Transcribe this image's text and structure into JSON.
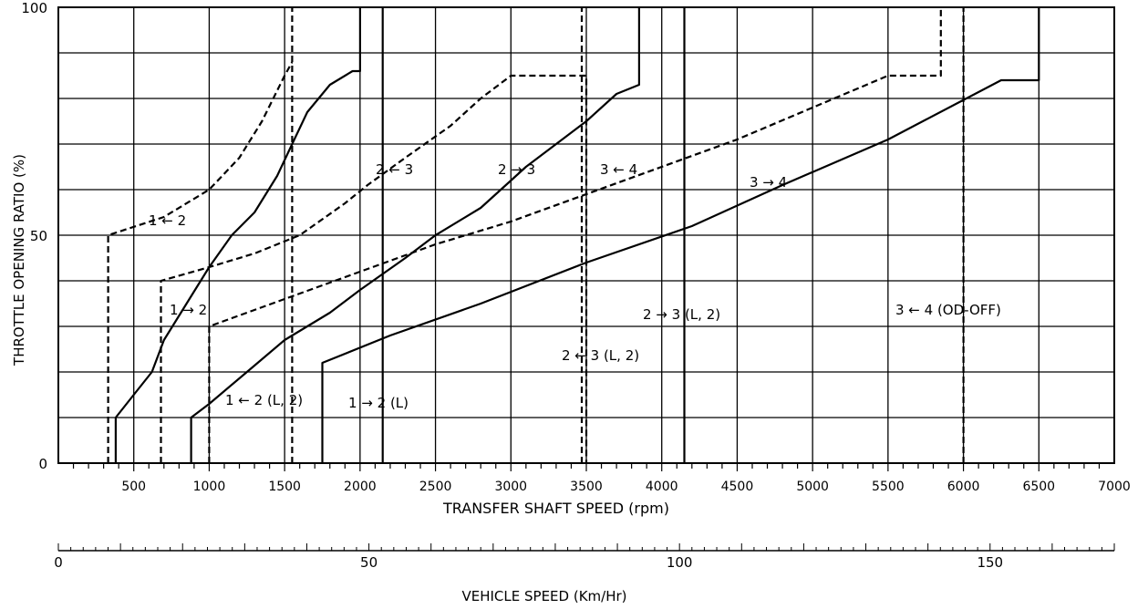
{
  "chart_data": {
    "type": "line",
    "xlabel": "TRANSFER SHAFT SPEED (rpm)",
    "ylabel": "THROTTLE OPENING RATIO (%)",
    "secondary_xlabel": "VEHICLE SPEED (Km/Hr)",
    "xlim": [
      0,
      7000
    ],
    "ylim": [
      0,
      100
    ],
    "x_ticks": [
      500,
      1000,
      1500,
      2000,
      2500,
      3000,
      3500,
      4000,
      4500,
      5000,
      5500,
      6000,
      6500,
      7000
    ],
    "y_ticks": [
      0,
      50,
      100
    ],
    "secondary_ticks": [
      0,
      50,
      100,
      150
    ],
    "grid": true,
    "series": [
      {
        "name": "1 ← 2",
        "style": "dashed",
        "points": [
          [
            330,
            0
          ],
          [
            330,
            50
          ],
          [
            700,
            54
          ],
          [
            1000,
            60
          ],
          [
            1200,
            67
          ],
          [
            1350,
            75
          ],
          [
            1500,
            85
          ],
          [
            1550,
            88
          ]
        ]
      },
      {
        "name": "1 → 2",
        "style": "solid",
        "points": [
          [
            380,
            0
          ],
          [
            380,
            10
          ],
          [
            500,
            15
          ],
          [
            620,
            20
          ],
          [
            700,
            27
          ],
          [
            850,
            35
          ],
          [
            1000,
            43
          ],
          [
            1150,
            50
          ],
          [
            1300,
            55
          ],
          [
            1450,
            63
          ],
          [
            1550,
            70
          ],
          [
            1650,
            77
          ],
          [
            1800,
            83
          ],
          [
            1950,
            86
          ],
          [
            2000,
            86
          ],
          [
            2000,
            100
          ]
        ]
      },
      {
        "name": "2 ← 3",
        "style": "dashed",
        "points": [
          [
            680,
            0
          ],
          [
            680,
            40
          ],
          [
            1000,
            43
          ],
          [
            1300,
            46
          ],
          [
            1600,
            50
          ],
          [
            1900,
            57
          ],
          [
            2050,
            61
          ],
          [
            2300,
            67
          ],
          [
            2600,
            74
          ],
          [
            2800,
            80
          ],
          [
            3000,
            85
          ],
          [
            3500,
            85
          ],
          [
            3500,
            0
          ]
        ]
      },
      {
        "name": "2 → 3",
        "style": "solid",
        "points": [
          [
            880,
            0
          ],
          [
            880,
            10
          ],
          [
            1000,
            13
          ],
          [
            1250,
            20
          ],
          [
            1500,
            27
          ],
          [
            1800,
            33
          ],
          [
            2000,
            38
          ],
          [
            2300,
            45
          ],
          [
            2500,
            50
          ],
          [
            2800,
            56
          ],
          [
            3000,
            62
          ],
          [
            3100,
            65
          ],
          [
            3300,
            70
          ],
          [
            3500,
            75
          ],
          [
            3700,
            81
          ],
          [
            3850,
            83
          ],
          [
            3850,
            100
          ]
        ]
      },
      {
        "name": "3 ← 4",
        "style": "dashed",
        "points": [
          [
            1000,
            0
          ],
          [
            1000,
            30
          ],
          [
            1500,
            36
          ],
          [
            2000,
            42
          ],
          [
            2500,
            48
          ],
          [
            3000,
            53
          ],
          [
            3500,
            59
          ],
          [
            4000,
            65
          ],
          [
            4500,
            71
          ],
          [
            5000,
            78
          ],
          [
            5500,
            85
          ],
          [
            5850,
            85
          ],
          [
            5850,
            100
          ]
        ]
      },
      {
        "name": "3 → 4",
        "style": "solid",
        "points": [
          [
            1750,
            0
          ],
          [
            1750,
            22
          ],
          [
            2200,
            28
          ],
          [
            2800,
            35
          ],
          [
            3500,
            44
          ],
          [
            4200,
            52
          ],
          [
            4800,
            61
          ],
          [
            5500,
            71
          ],
          [
            6250,
            84
          ],
          [
            6500,
            84
          ],
          [
            6500,
            100
          ]
        ]
      },
      {
        "name": "1 → 2 (L)",
        "style": "solid",
        "points": [
          [
            2150,
            0
          ],
          [
            2150,
            100
          ]
        ]
      },
      {
        "name": "1 ← 2 (L, 2)",
        "style": "dashed",
        "points": [
          [
            1550,
            0
          ],
          [
            1550,
            100
          ]
        ]
      },
      {
        "name": "2 → 3 (L, 2)",
        "style": "solid",
        "points": [
          [
            4150,
            0
          ],
          [
            4150,
            100
          ]
        ]
      },
      {
        "name": "2 ← 3 (L, 2)",
        "style": "dashed",
        "points": [
          [
            3470,
            0
          ],
          [
            3470,
            100
          ]
        ]
      },
      {
        "name": "3 ← 4 (OD-OFF)",
        "style": "dashed",
        "points": [
          [
            6000,
            0
          ],
          [
            6000,
            100
          ]
        ]
      }
    ],
    "annotations": [
      "1 ← 2",
      "1 → 2",
      "2 ← 3",
      "2 → 3",
      "3 ← 4",
      "3 → 4",
      "1 ← 2 (L, 2)",
      "1 → 2 (L)",
      "2 ← 3 (L, 2)",
      "2 → 3 (L, 2)",
      "3 ← 4 (OD-OFF)"
    ]
  }
}
